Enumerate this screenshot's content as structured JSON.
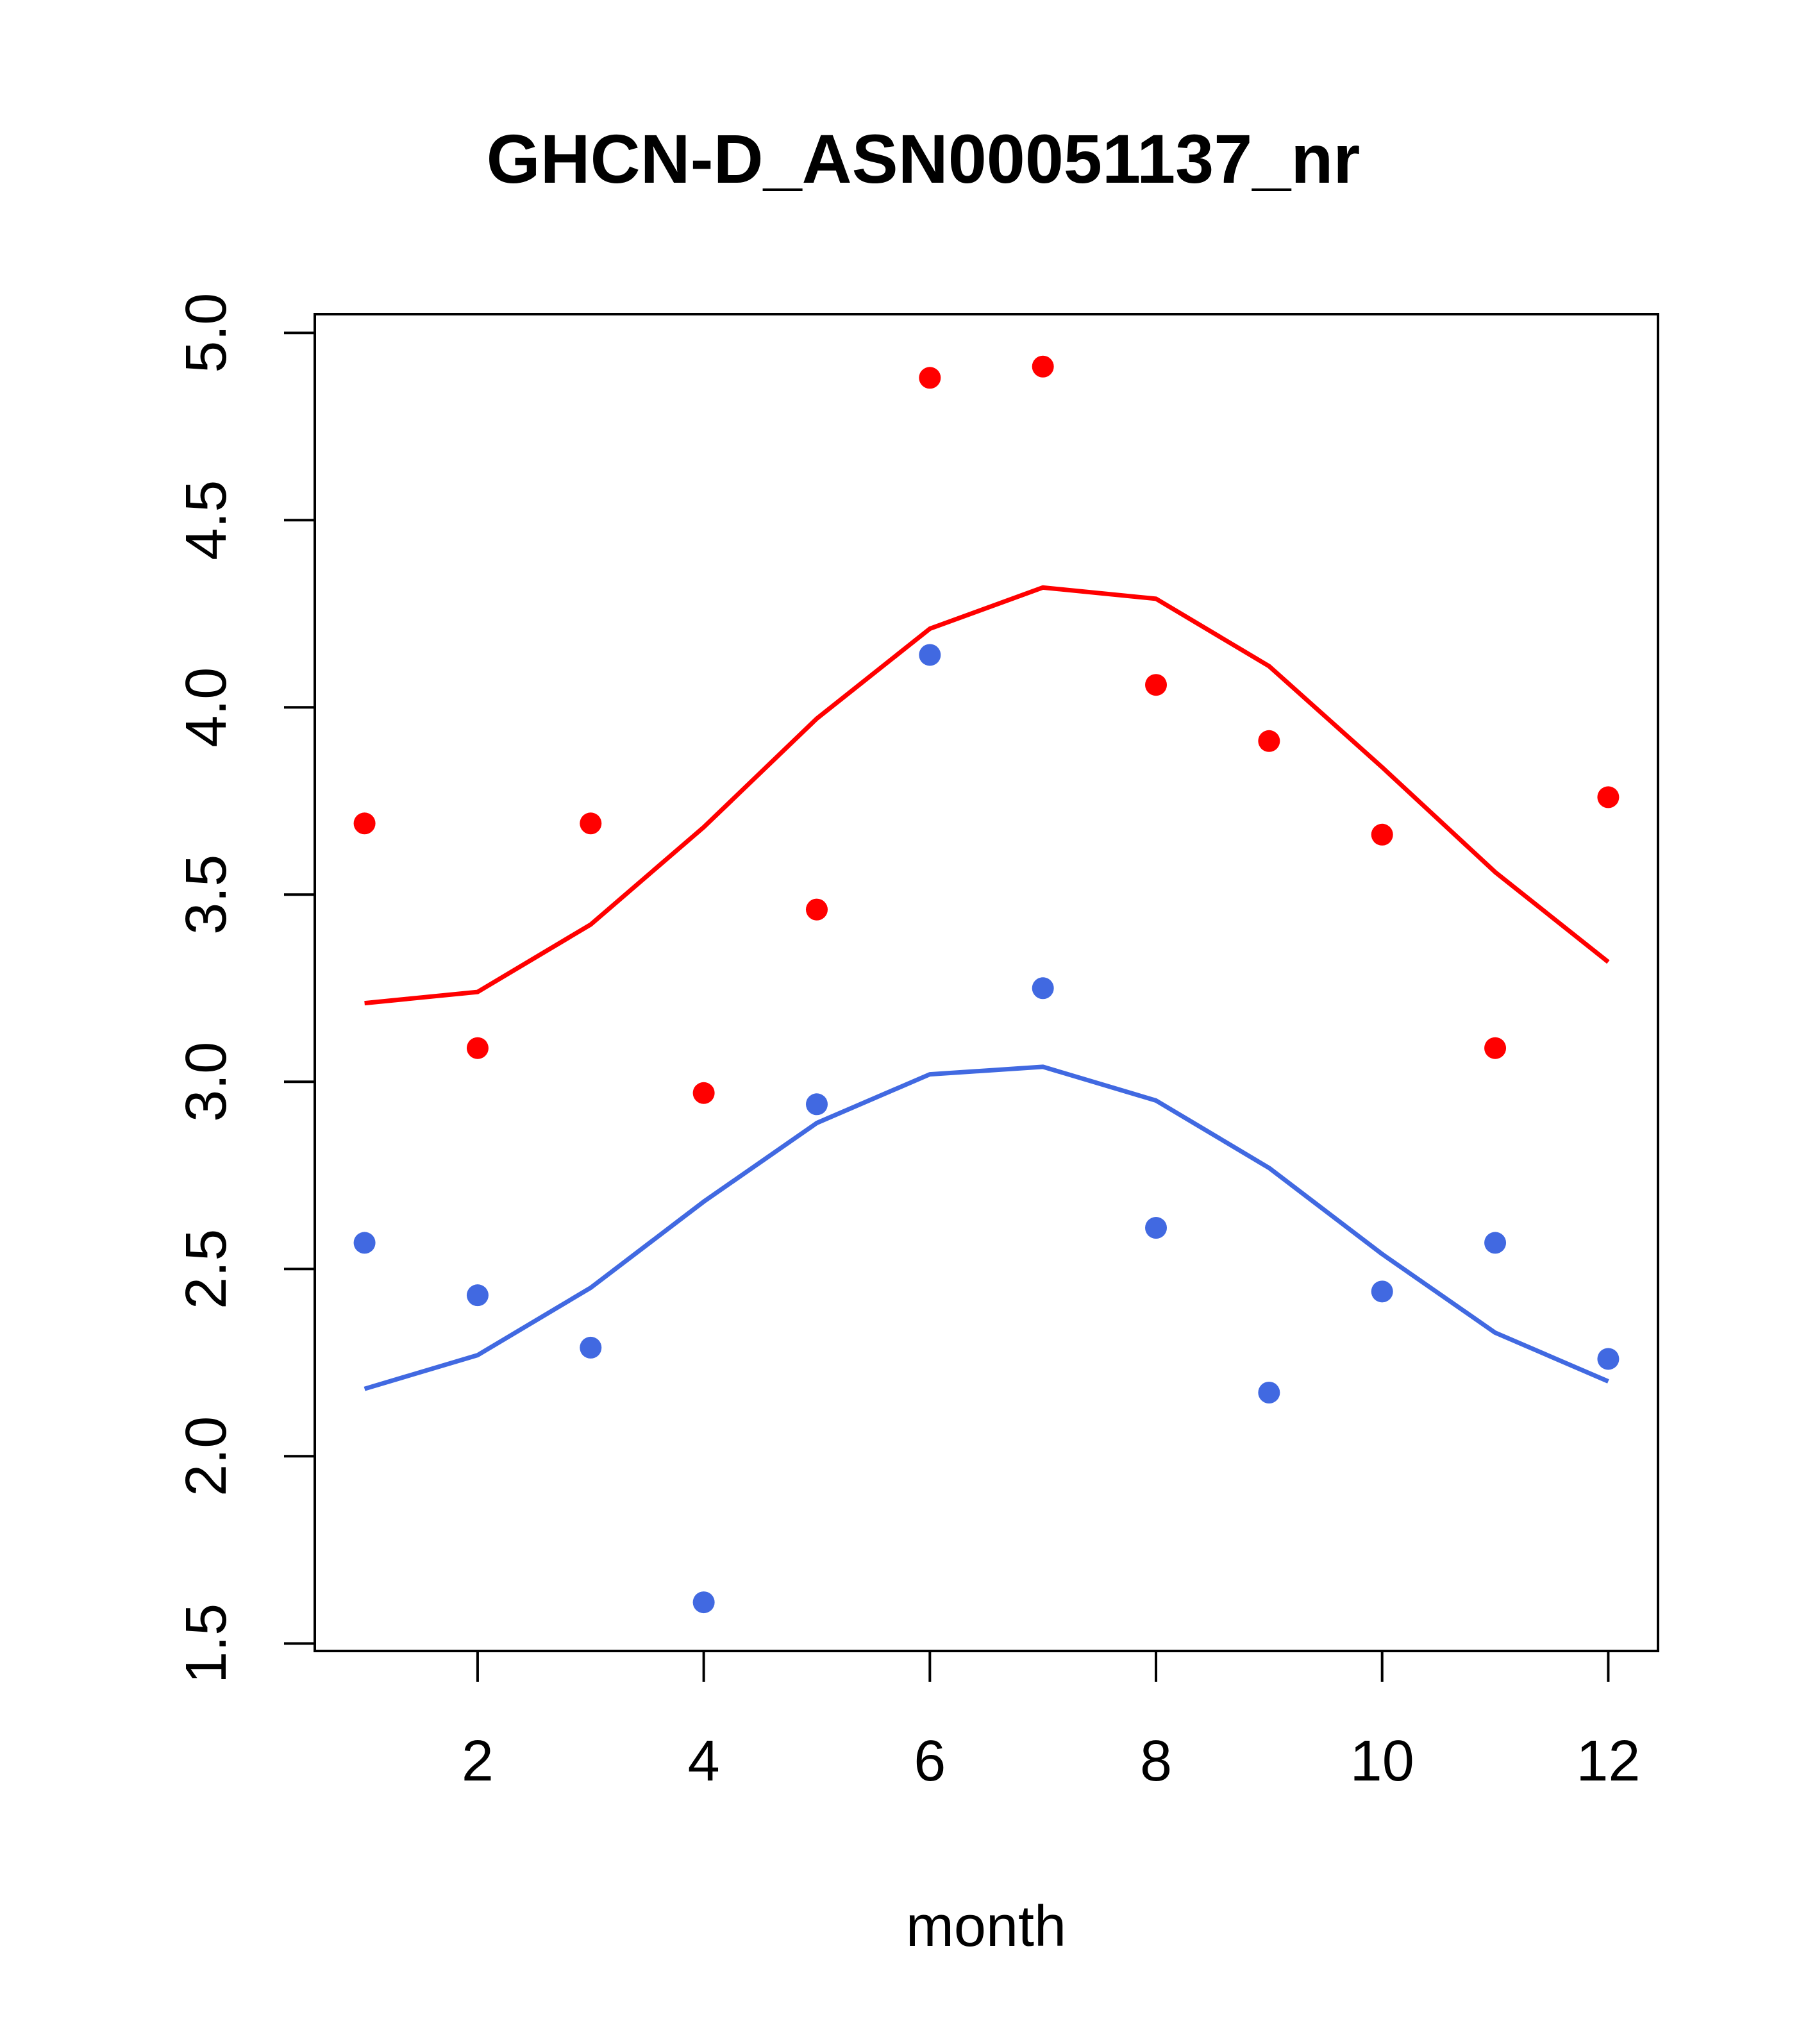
{
  "chart_data": {
    "type": "scatter",
    "title": "GHCN-D_ASN00051137_nr",
    "xlabel": "month",
    "ylabel": "",
    "xlim": [
      0.56,
      12.44
    ],
    "ylim": [
      1.48,
      5.05
    ],
    "x_ticks": [
      2,
      4,
      6,
      8,
      10,
      12
    ],
    "x_tick_labels": [
      "2",
      "4",
      "6",
      "8",
      "10",
      "12"
    ],
    "y_ticks": [
      1.5,
      2.0,
      2.5,
      3.0,
      3.5,
      4.0,
      4.5,
      5.0
    ],
    "y_tick_labels": [
      "1.5",
      "2.0",
      "2.5",
      "3.0",
      "3.5",
      "4.0",
      "4.5",
      "5.0"
    ],
    "grid": false,
    "x": [
      1,
      2,
      3,
      4,
      5,
      6,
      7,
      8,
      9,
      10,
      11,
      12
    ],
    "series": [
      {
        "kind": "points",
        "color": "#ff0000",
        "values": [
          3.69,
          3.09,
          3.69,
          2.97,
          3.46,
          4.88,
          4.91,
          4.06,
          3.91,
          3.66,
          3.09,
          3.76
        ]
      },
      {
        "kind": "line",
        "color": "#ff0000",
        "values": [
          3.21,
          3.24,
          3.42,
          3.68,
          3.97,
          4.21,
          4.32,
          4.29,
          4.11,
          3.84,
          3.56,
          3.32
        ]
      },
      {
        "kind": "points",
        "color": "#4169e1",
        "values": [
          2.57,
          2.43,
          2.29,
          1.61,
          2.94,
          4.14,
          3.25,
          2.61,
          2.17,
          2.44,
          2.57,
          2.26
        ]
      },
      {
        "kind": "line",
        "color": "#4169e1",
        "values": [
          2.18,
          2.27,
          2.45,
          2.68,
          2.89,
          3.02,
          3.04,
          2.95,
          2.77,
          2.54,
          2.33,
          2.2
        ]
      }
    ]
  }
}
